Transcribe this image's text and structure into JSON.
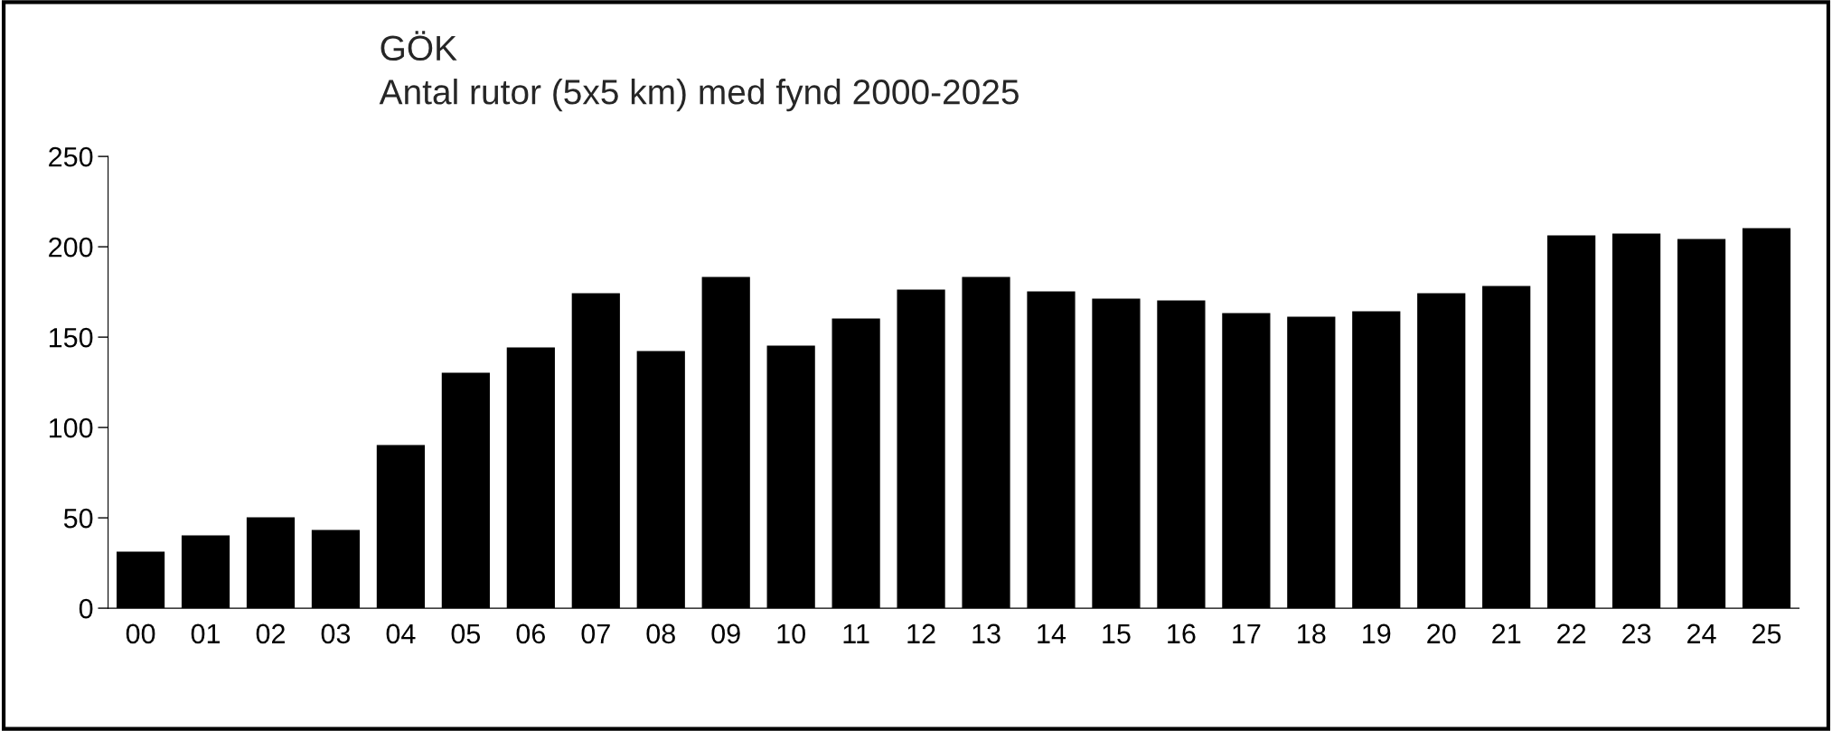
{
  "chart_data": {
    "type": "bar",
    "title": "GÖK",
    "subtitle": "Antal rutor (5x5 km) med fynd 2000-2025",
    "categories": [
      "00",
      "01",
      "02",
      "03",
      "04",
      "05",
      "06",
      "07",
      "08",
      "09",
      "10",
      "11",
      "12",
      "13",
      "14",
      "15",
      "16",
      "17",
      "18",
      "19",
      "20",
      "21",
      "22",
      "23",
      "24",
      "25"
    ],
    "values": [
      31,
      40,
      50,
      43,
      90,
      130,
      144,
      174,
      142,
      183,
      145,
      160,
      176,
      183,
      175,
      171,
      170,
      163,
      161,
      164,
      174,
      178,
      206,
      207,
      204,
      210
    ],
    "color": "#000000",
    "ylim": [
      0,
      250
    ],
    "yticks": [
      0,
      50,
      100,
      150,
      200,
      250
    ],
    "grid": false,
    "legend": false
  }
}
